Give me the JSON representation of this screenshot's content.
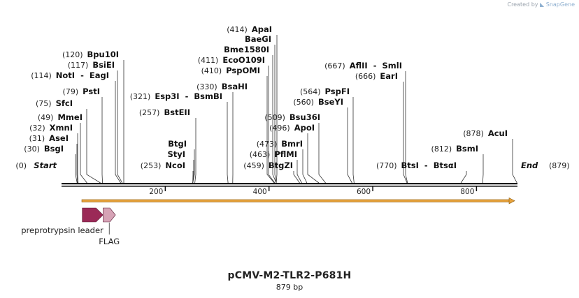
{
  "credit": {
    "prefix": "Created by",
    "brand": "SnapGene"
  },
  "map": {
    "name": "pCMV-M2-TLR2-P681H",
    "length_label": "879 bp",
    "length": 879,
    "start_label": "Start",
    "start_pos": "(0)",
    "end_label": "End",
    "end_pos": "(879)",
    "ticks": [
      {
        "pos": 200,
        "label": "200"
      },
      {
        "pos": 400,
        "label": "400"
      },
      {
        "pos": 600,
        "label": "600"
      },
      {
        "pos": 800,
        "label": "800"
      }
    ],
    "sites": [
      {
        "pos": "(30)",
        "name": "BsgI",
        "site": 30
      },
      {
        "pos": "(31)",
        "name": "AseI",
        "site": 31
      },
      {
        "pos": "(32)",
        "name": "XmnI",
        "site": 32
      },
      {
        "pos": "(49)",
        "name": "MmeI",
        "site": 49
      },
      {
        "pos": "(75)",
        "name": "SfcI",
        "site": 75
      },
      {
        "pos": "(79)",
        "name": "PstI",
        "site": 79
      },
      {
        "pos": "(114)",
        "name": "NotI  -  EagI",
        "site": 114
      },
      {
        "pos": "(117)",
        "name": "BsiEI",
        "site": 117
      },
      {
        "pos": "(120)",
        "name": "Bpu10I",
        "site": 120
      },
      {
        "pos": "(253)",
        "name": "NcoI",
        "site": 253
      },
      {
        "pos": "",
        "name": "StyI",
        "site": 253
      },
      {
        "pos": "",
        "name": "BtgI",
        "site": 253
      },
      {
        "pos": "(257)",
        "name": "BstEII",
        "site": 257
      },
      {
        "pos": "(321)",
        "name": "Esp3I  -  BsmBI",
        "site": 321
      },
      {
        "pos": "(330)",
        "name": "BsaHI",
        "site": 330
      },
      {
        "pos": "(410)",
        "name": "PspOMI",
        "site": 410
      },
      {
        "pos": "(411)",
        "name": "EcoO109I",
        "site": 411
      },
      {
        "pos": "",
        "name": "Bme1580I",
        "site": 414
      },
      {
        "pos": "",
        "name": "BaeGI",
        "site": 414
      },
      {
        "pos": "(414)",
        "name": "ApaI",
        "site": 414
      },
      {
        "pos": "(459)",
        "name": "BtgZI",
        "site": 459
      },
      {
        "pos": "(463)",
        "name": "PflMI",
        "site": 463
      },
      {
        "pos": "(473)",
        "name": "BmrI",
        "site": 473
      },
      {
        "pos": "(496)",
        "name": "ApoI",
        "site": 496
      },
      {
        "pos": "(509)",
        "name": "Bsu36I",
        "site": 509
      },
      {
        "pos": "(560)",
        "name": "BseYI",
        "site": 560
      },
      {
        "pos": "(564)",
        "name": "PspFI",
        "site": 564
      },
      {
        "pos": "(666)",
        "name": "EarI",
        "site": 666
      },
      {
        "pos": "(667)",
        "name": "AflII  -  SmlI",
        "site": 667
      },
      {
        "pos": "(770)",
        "name": "BtsI  -  BtsαI",
        "site": 770
      },
      {
        "pos": "(812)",
        "name": "BsmI",
        "site": 812
      },
      {
        "pos": "(878)",
        "name": "AcuI",
        "site": 878
      }
    ],
    "features": [
      {
        "name": "preprotrypsin leader",
        "start": 40,
        "end": 80,
        "color": "#9b2a57"
      },
      {
        "name": "FLAG",
        "start": 80,
        "end": 104,
        "color": "#d6a3b6"
      }
    ],
    "orf_color": "#e8a33c"
  }
}
